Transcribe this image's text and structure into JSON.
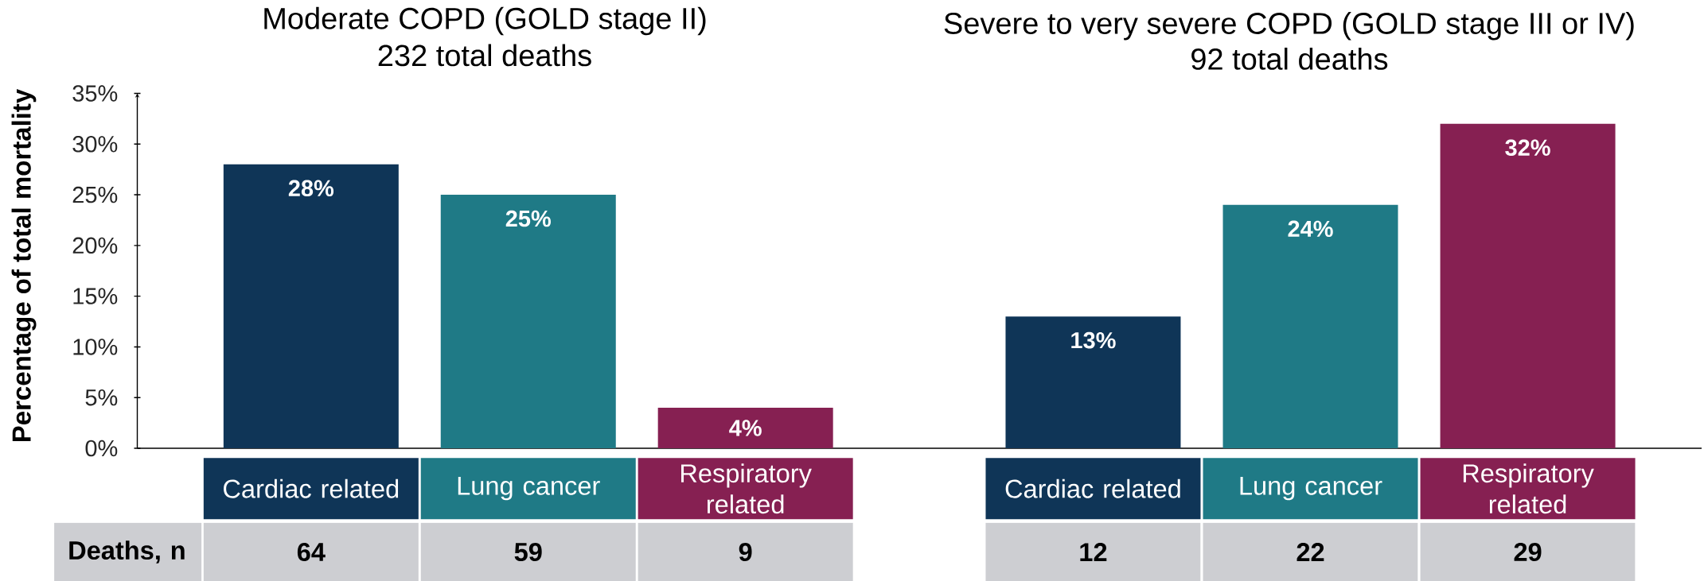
{
  "chart_data": [
    {
      "type": "bar",
      "title": "Moderate COPD (GOLD stage II)",
      "subtitle": "232 total deaths",
      "ylabel": "Percentage of total mortality",
      "categories": [
        "Cardiac related",
        "Lung cancer",
        "Respiratory related"
      ],
      "values": [
        28,
        25,
        4
      ],
      "colors": [
        "#0f3557",
        "#1f7a86",
        "#862052"
      ],
      "value_labels": [
        "28%",
        "25%",
        "4%"
      ],
      "ylim": [
        0,
        35
      ],
      "yticks": [
        {
          "value": 0,
          "label": "0%"
        },
        {
          "value": 5,
          "label": "5%"
        },
        {
          "value": 10,
          "label": "10%"
        },
        {
          "value": 15,
          "label": "15%"
        },
        {
          "value": 20,
          "label": "20%"
        },
        {
          "value": 25,
          "label": "25%"
        },
        {
          "value": 30,
          "label": "30%"
        },
        {
          "value": 35,
          "label": "35%"
        }
      ],
      "annotations": [
        "Deaths, n",
        "64",
        "59",
        "9"
      ]
    },
    {
      "type": "bar",
      "title": "Severe to very severe COPD (GOLD stage III or IV)",
      "subtitle": "92 total deaths",
      "categories": [
        "Cardiac related",
        "Lung cancer",
        "Respiratory related"
      ],
      "values": [
        13,
        24,
        32
      ],
      "colors": [
        "#0f3557",
        "#1f7a86",
        "#862052"
      ],
      "value_labels": [
        "13%",
        "24%",
        "32%"
      ],
      "ylim": [
        0,
        35
      ],
      "tick_labels": "x",
      "annotations": [
        "12",
        "22",
        "29"
      ]
    }
  ]
}
